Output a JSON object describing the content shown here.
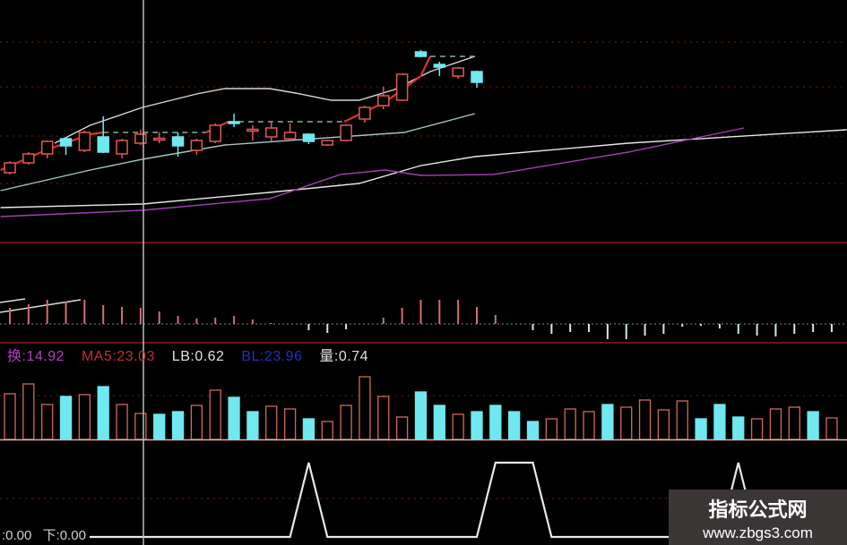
{
  "legend": {
    "turnover": "换:14.92",
    "ma5": "MA5:23.03",
    "lb": "LB:0.62",
    "bl": "BL:23.96",
    "liang": "量:0.74"
  },
  "bottom": {
    "left": ":0.00",
    "down": "下:0.00"
  },
  "watermark": {
    "title": "指标公式网",
    "url": "www.zbgs3.com"
  },
  "colors": {
    "up": "#e05a50",
    "down": "#6fe8f0",
    "turnover": "#b040c0",
    "ma5": "#c03030",
    "bl": "#2530c0",
    "separator": "#8a1c1c"
  },
  "chart_data": [
    {
      "type": "candlestick",
      "candles": [
        [
          10.7,
          12.0,
          10.5,
          11.8
        ],
        [
          11.8,
          13.0,
          11.6,
          12.8
        ],
        [
          12.8,
          14.3,
          12.3,
          14.2
        ],
        [
          14.5,
          14.7,
          12.7,
          13.7
        ],
        [
          13.2,
          15.4,
          13.0,
          15.2
        ],
        [
          14.7,
          17.0,
          12.9,
          13.0
        ],
        [
          12.8,
          14.5,
          12.3,
          14.3
        ],
        [
          14.0,
          15.5,
          13.8,
          15.0
        ],
        [
          14.45,
          15.2,
          14.0,
          14.55
        ],
        [
          14.7,
          15.2,
          12.5,
          13.7
        ],
        [
          13.2,
          14.5,
          12.7,
          14.3
        ],
        [
          14.2,
          16.2,
          14.0,
          16.0
        ],
        [
          16.4,
          17.3,
          15.8,
          16.2
        ],
        [
          15.45,
          16.0,
          14.3,
          15.55
        ],
        [
          14.7,
          16.5,
          14.2,
          15.7
        ],
        [
          14.5,
          16.2,
          14.2,
          15.2
        ],
        [
          15.0,
          15.1,
          13.9,
          14.2
        ],
        [
          13.8,
          14.4,
          13.7,
          14.3
        ],
        [
          14.3,
          16.1,
          14.2,
          16.0
        ],
        [
          16.7,
          18.2,
          16.3,
          18.0
        ],
        [
          18.2,
          20.3,
          17.8,
          19.3
        ],
        [
          18.8,
          21.8,
          18.7,
          21.7
        ],
        [
          24.2,
          24.4,
          23.6,
          23.7
        ],
        [
          22.8,
          23.1,
          21.5,
          22.5
        ],
        [
          21.5,
          22.5,
          21.2,
          22.4
        ],
        [
          22.0,
          22.1,
          20.2,
          20.8
        ]
      ],
      "lines": [
        {
          "color": "#d8d8d8",
          "points": [
            [
              2.4,
              14.0
            ],
            [
              4.3,
              16.0
            ],
            [
              7.1,
              18.0
            ],
            [
              10.0,
              19.5
            ],
            [
              11.5,
              20.1
            ],
            [
              13.9,
              20.1
            ],
            [
              15.3,
              19.6
            ],
            [
              17.2,
              18.8
            ],
            [
              18.7,
              18.8
            ],
            [
              20.6,
              20.0
            ],
            [
              22.5,
              22.0
            ],
            [
              23.9,
              23.0
            ],
            [
              24.9,
              23.7
            ]
          ]
        },
        {
          "color": "#a0c8c0",
          "points": [
            [
              -0.5,
              8.7
            ],
            [
              4.3,
              11.0
            ],
            [
              7.1,
              12.2
            ],
            [
              11.5,
              13.8
            ],
            [
              16.3,
              14.5
            ],
            [
              21.1,
              15.2
            ],
            [
              24.9,
              17.3
            ]
          ]
        },
        {
          "color": "#e8e8e8",
          "points": [
            [
              -0.5,
              6.8
            ],
            [
              7.1,
              7.2
            ],
            [
              13.9,
              8.5
            ],
            [
              18.7,
              9.5
            ],
            [
              22.0,
              11.5
            ],
            [
              24.9,
              12.5
            ],
            [
              33.1,
              14.0
            ],
            [
              44.8,
              15.5
            ]
          ]
        },
        {
          "color": "#a040b0",
          "points": [
            [
              -0.5,
              5.8
            ],
            [
              7.1,
              6.5
            ],
            [
              13.9,
              7.8
            ],
            [
              17.7,
              10.5
            ],
            [
              20.1,
              11.0
            ],
            [
              22.0,
              10.4
            ],
            [
              25.9,
              10.5
            ],
            [
              33.1,
              13.0
            ],
            [
              39.3,
              15.7
            ]
          ]
        },
        {
          "color": "#e03030",
          "points": [
            [
              -0.5,
              11.0
            ],
            [
              1.9,
              13.2
            ],
            [
              4.3,
              15.0
            ],
            [
              5.0,
              15.2
            ]
          ]
        },
        {
          "color": "#e03030",
          "points": [
            [
              10.5,
              15.2
            ],
            [
              11.7,
              16.4
            ]
          ]
        },
        {
          "color": "#e03030",
          "points": [
            [
              17.9,
              16.4
            ],
            [
              20.1,
              18.6
            ],
            [
              22.0,
              21.5
            ],
            [
              22.5,
              23.7
            ]
          ]
        },
        {
          "color": "#8ab090",
          "dashed": true,
          "points": [
            [
              5.0,
              15.2
            ],
            [
              10.5,
              15.2
            ]
          ]
        },
        {
          "color": "#8ab090",
          "dashed": true,
          "points": [
            [
              11.7,
              16.4
            ],
            [
              17.9,
              16.4
            ]
          ]
        },
        {
          "color": "#8ab090",
          "dashed": true,
          "points": [
            [
              22.5,
              23.7
            ],
            [
              24.9,
              23.7
            ]
          ]
        }
      ],
      "grid": true
    },
    {
      "type": "bar",
      "values": [
        18,
        22,
        27,
        25,
        27,
        21,
        19,
        18,
        14,
        9,
        6,
        7,
        9,
        5,
        1,
        0,
        -7,
        -10,
        -6,
        0,
        7,
        18,
        27,
        27,
        27,
        19,
        10,
        0,
        -7,
        -11,
        -9,
        -9,
        -17,
        -17,
        -13,
        -11,
        -3,
        -2,
        -5,
        -11,
        -13,
        -14,
        -11,
        -9,
        -9
      ]
    },
    {
      "type": "bar",
      "values": [
        51,
        62,
        39,
        48,
        50,
        59,
        39,
        29,
        28,
        31,
        38,
        55,
        47,
        31,
        37,
        34,
        23,
        20,
        38,
        70,
        48,
        25,
        53,
        38,
        28,
        31,
        38,
        31,
        20,
        23,
        34,
        31,
        39,
        36,
        44,
        33,
        43,
        23,
        39,
        25,
        23,
        34,
        36,
        31,
        24
      ],
      "down_indices": [
        3,
        5,
        8,
        9,
        12,
        13,
        16,
        22,
        23,
        25,
        26,
        27,
        28,
        32,
        37,
        38,
        39,
        43
      ]
    },
    {
      "type": "line",
      "values": [
        0,
        0,
        0,
        0,
        0,
        0,
        0,
        0,
        0,
        0,
        0,
        0,
        0,
        0,
        0,
        0,
        1,
        0,
        0,
        0,
        0,
        0,
        0,
        0,
        0,
        0,
        1,
        1,
        1,
        0,
        0,
        0,
        0,
        0,
        0,
        0,
        0,
        0,
        0,
        1,
        0,
        0,
        0,
        0,
        0
      ]
    }
  ]
}
